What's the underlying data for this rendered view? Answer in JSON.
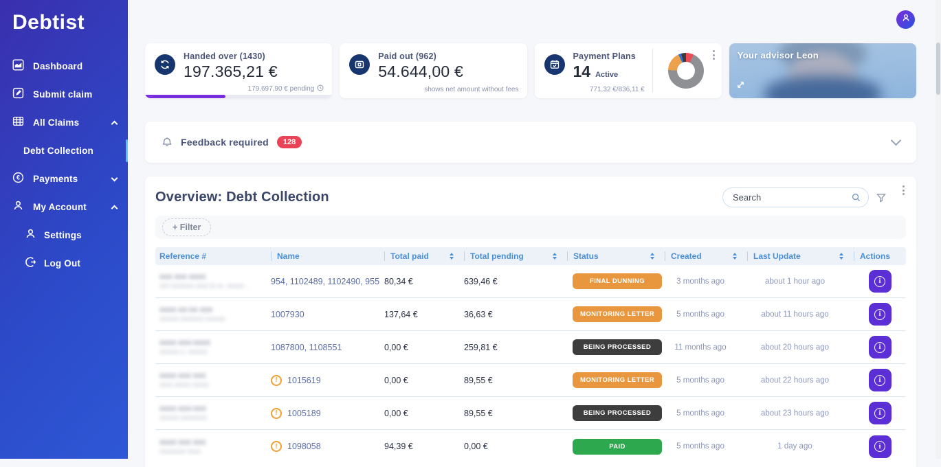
{
  "sidebar": {
    "logo": "Debtist",
    "items": [
      {
        "label": "Dashboard"
      },
      {
        "label": "Submit claim"
      },
      {
        "label": "All Claims",
        "chevron": "up"
      },
      {
        "label": "Debt Collection",
        "active": true
      },
      {
        "label": "Payments",
        "chevron": "down"
      },
      {
        "label": "My Account",
        "chevron": "up"
      },
      {
        "label": "Settings"
      },
      {
        "label": "Log Out"
      }
    ]
  },
  "cards": {
    "handed_over": {
      "title": "Handed over (1430)",
      "value": "197.365,21 €",
      "footnote": "179.697,90 € pending",
      "icon": "sync-icon",
      "progress_pct": 43,
      "progress_color": "#7A2EE0"
    },
    "paid_out": {
      "title": "Paid out (962)",
      "value": "54.644,00 €",
      "footnote": "shows net amount without fees",
      "icon": "banknote-icon"
    },
    "payment_plans": {
      "title": "Payment Plans",
      "value": "14",
      "value_label": "Active",
      "footnote": "771,32 €/836,11 €",
      "icon": "calendar-check-icon",
      "chart": {
        "type": "donut",
        "segments": [
          {
            "name": "red",
            "color": "#EF4B55",
            "deg": 25
          },
          {
            "name": "gray",
            "color": "#8F9093",
            "deg": 247
          },
          {
            "name": "orange",
            "color": "#EDA14C",
            "deg": 63
          },
          {
            "name": "blue",
            "color": "#2F6FD8",
            "deg": 9
          },
          {
            "name": "dark",
            "color": "#3B3B3B",
            "deg": 16
          }
        ]
      }
    },
    "advisor": {
      "title": "Your advisor Leon"
    }
  },
  "feedback": {
    "label": "Feedback required",
    "badge": "128",
    "badge_color": "#EA4256"
  },
  "overview": {
    "title": "Overview: Debt Collection",
    "search": {
      "placeholder": "Search"
    },
    "filter_label": "+ Filter",
    "table": {
      "columns": [
        {
          "label": "Reference #",
          "sortable": false
        },
        {
          "label": "Name",
          "sortable": false
        },
        {
          "label": "Total paid",
          "sortable": true
        },
        {
          "label": "Total pending",
          "sortable": true
        },
        {
          "label": "Status",
          "sortable": true
        },
        {
          "label": "Created",
          "sortable": true
        },
        {
          "label": "Last Update",
          "sortable": true
        },
        {
          "label": "Actions",
          "sortable": false
        }
      ],
      "rows": [
        {
          "reference_masked": [
            "xxx xxx xxxx",
            "xxx xxxxxxx xxxx & xx. xxxxx..."
          ],
          "warning": false,
          "name": "954, 1102489, 1102490, 955",
          "total_paid": "80,34 €",
          "total_pending": "639,46 €",
          "status": "FINAL DUNNING",
          "status_color": "#E9973E",
          "created": "3 months ago",
          "last_update": "about 1 hour ago"
        },
        {
          "reference_masked": [
            "xxxx xx-xx xxx",
            "xxxxxx xxxxxxx xxxxxx"
          ],
          "warning": false,
          "name": "1007930",
          "total_paid": "137,64 €",
          "total_pending": "36,63 €",
          "status": "MONITORING LETTER",
          "status_color": "#E9973E",
          "created": "5 months ago",
          "last_update": "about 11 hours ago"
        },
        {
          "reference_masked": [
            "xxxx xxx-xxxx",
            "xxxxxx x. xxxxxx"
          ],
          "warning": false,
          "name": "1087800, 1108551",
          "total_paid": "0,00 €",
          "total_pending": "259,81 €",
          "status": "BEING PROCESSED",
          "status_color": "#3D3D3D",
          "created": "11 months ago",
          "last_update": "about 20 hours ago"
        },
        {
          "reference_masked": [
            "xxxx xxx xxx",
            "xxxx xxxxx xxxxx"
          ],
          "warning": true,
          "name": "1015619",
          "total_paid": "0,00 €",
          "total_pending": "89,55 €",
          "status": "MONITORING LETTER",
          "status_color": "#E9973E",
          "created": "5 months ago",
          "last_update": "about 22 hours ago"
        },
        {
          "reference_masked": [
            "xxxx xxx-xxx",
            "xxxxxx xxxxxxxx"
          ],
          "warning": true,
          "name": "1005189",
          "total_paid": "0,00 €",
          "total_pending": "89,55 €",
          "status": "BEING PROCESSED",
          "status_color": "#3D3D3D",
          "created": "5 months ago",
          "last_update": "about 23 hours ago"
        },
        {
          "reference_masked": [
            "xxxx xxx xxx",
            "xxxxxxxx xxxx"
          ],
          "warning": true,
          "name": "1098058",
          "total_paid": "94,39 €",
          "total_pending": "0,00 €",
          "status": "PAID",
          "status_color": "#2EA84E",
          "created": "5 months ago",
          "last_update": "1 day ago"
        }
      ]
    }
  }
}
